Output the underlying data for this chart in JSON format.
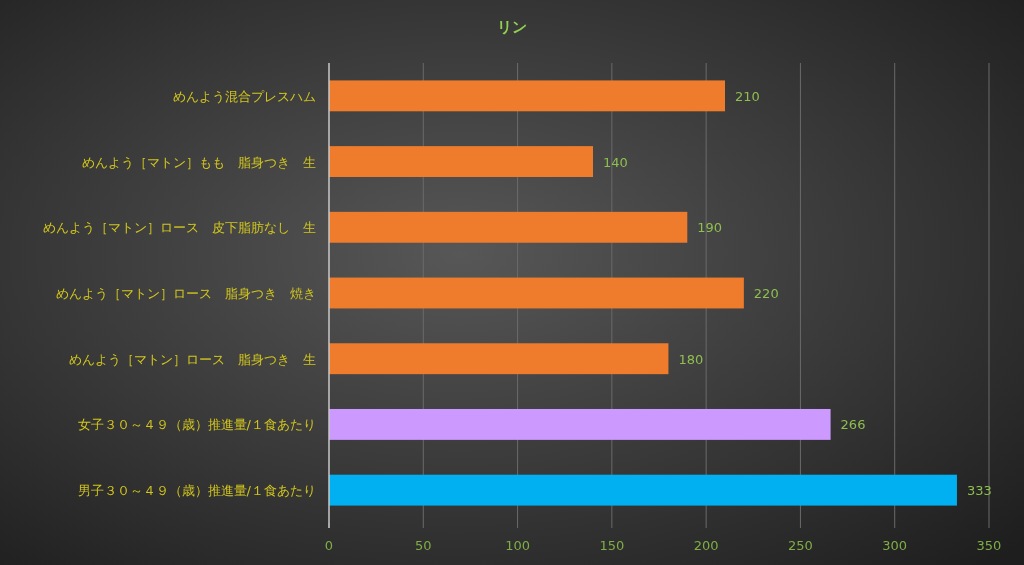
{
  "chart_data": {
    "type": "bar",
    "orientation": "horizontal",
    "title": "リン",
    "categories": [
      "めんよう混合プレスハム",
      "めんよう［マトン］もも　脂身つき　生",
      "めんよう［マトン］ロース　皮下脂肪なし　生",
      "めんよう［マトン］ロース　脂身つき　焼き",
      "めんよう［マトン］ロース　脂身つき　生",
      "女子３０～４９（歳）推進量/１食あたり",
      "男子３０～４９（歳）推進量/１食あたり"
    ],
    "values": [
      210,
      140,
      190,
      220,
      180,
      266,
      333
    ],
    "colors": [
      "#ef7b2c",
      "#ef7b2c",
      "#ef7b2c",
      "#ef7b2c",
      "#ef7b2c",
      "#cc99ff",
      "#00b0f0"
    ],
    "xlim": [
      0,
      350
    ],
    "xticks": [
      0,
      50,
      100,
      150,
      200,
      250,
      300,
      350
    ],
    "grid": "x",
    "data_labels": true
  }
}
